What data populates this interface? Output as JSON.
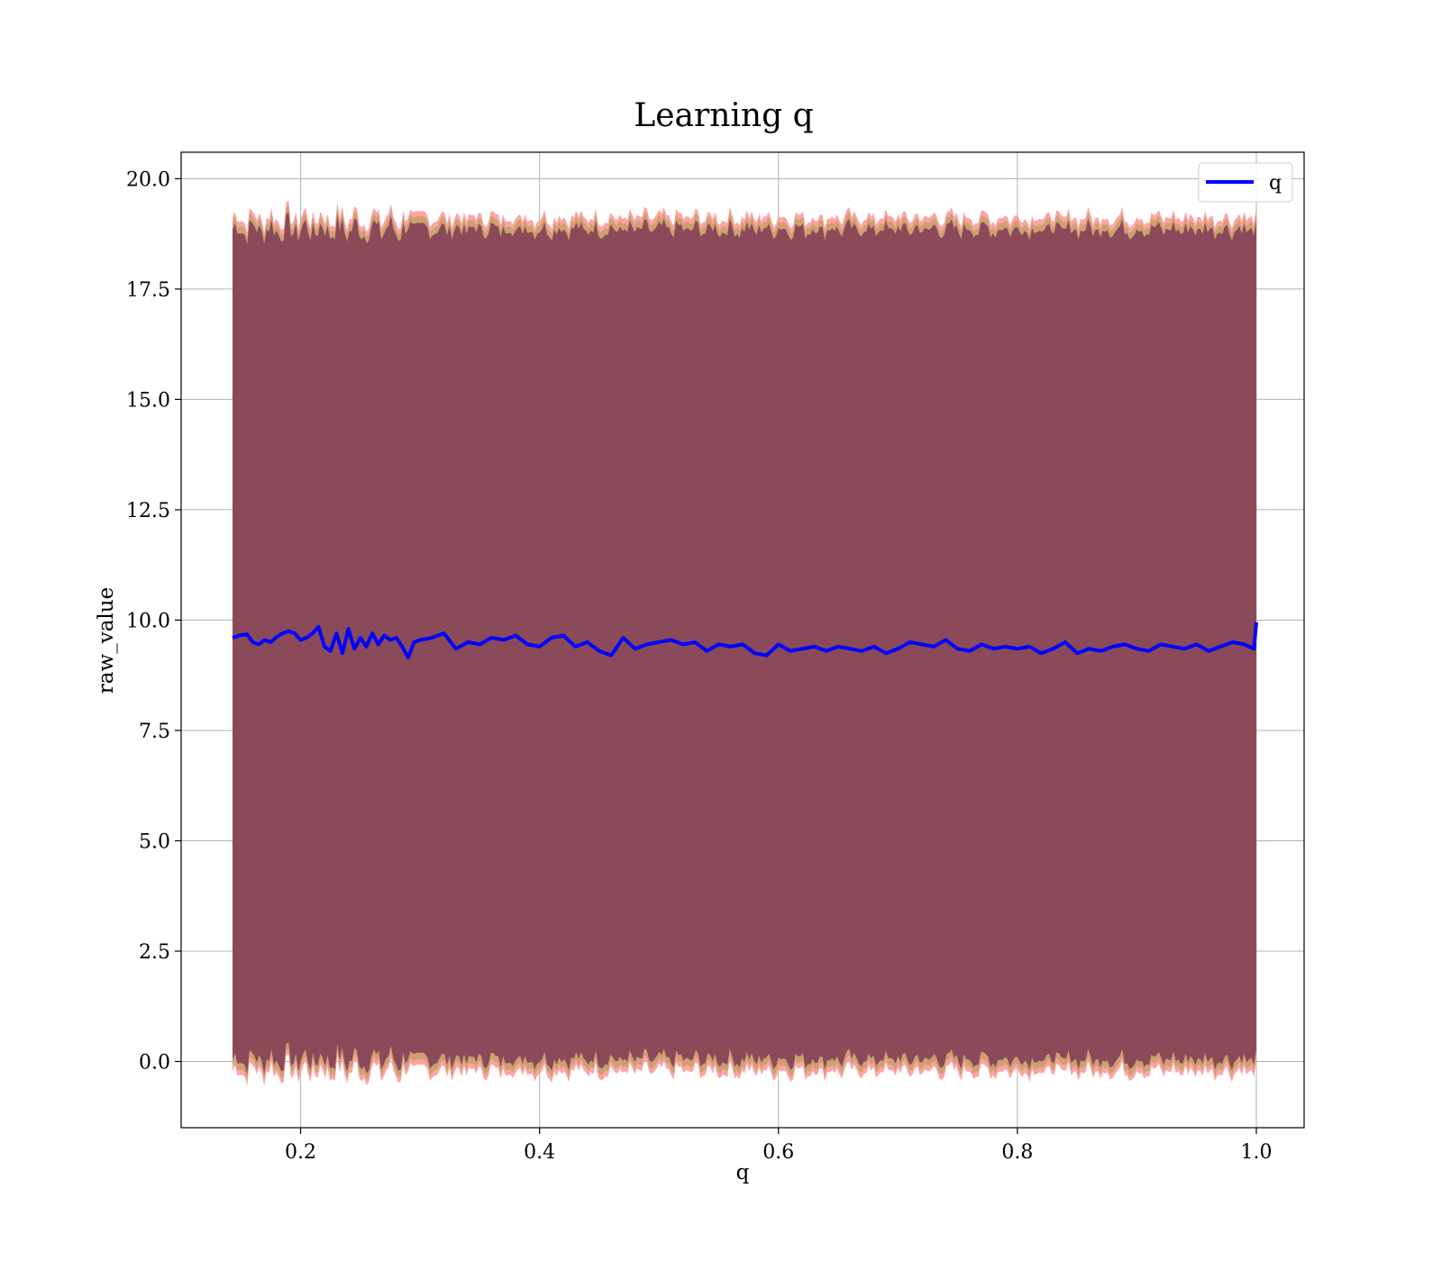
{
  "chart_data": {
    "type": "line",
    "title": "Learning q",
    "xlabel": "q",
    "ylabel": "raw_value",
    "xlim": [
      0.1,
      1.04
    ],
    "ylim": [
      -1.5,
      20.6
    ],
    "x_ticks": [
      0.2,
      0.4,
      0.6,
      0.8,
      1.0
    ],
    "x_tick_labels": [
      "0.2",
      "0.4",
      "0.6",
      "0.8",
      "1.0"
    ],
    "y_ticks": [
      0.0,
      2.5,
      5.0,
      7.5,
      10.0,
      12.5,
      15.0,
      17.5,
      20.0
    ],
    "y_tick_labels": [
      "0.0",
      "2.5",
      "5.0",
      "7.5",
      "10.0",
      "12.5",
      "15.0",
      "17.5",
      "20.0"
    ],
    "grid": true,
    "legend": {
      "position": "top-right",
      "entries": [
        "q"
      ]
    },
    "series": [
      {
        "name": "q",
        "color": "#0000ff",
        "x": [
          0.143,
          0.15,
          0.155,
          0.16,
          0.165,
          0.17,
          0.175,
          0.18,
          0.185,
          0.19,
          0.195,
          0.2,
          0.205,
          0.21,
          0.215,
          0.22,
          0.225,
          0.23,
          0.235,
          0.24,
          0.245,
          0.25,
          0.255,
          0.26,
          0.265,
          0.27,
          0.275,
          0.28,
          0.285,
          0.29,
          0.295,
          0.3,
          0.31,
          0.32,
          0.33,
          0.34,
          0.35,
          0.36,
          0.37,
          0.38,
          0.39,
          0.4,
          0.41,
          0.42,
          0.43,
          0.44,
          0.45,
          0.46,
          0.47,
          0.48,
          0.49,
          0.5,
          0.51,
          0.52,
          0.53,
          0.54,
          0.55,
          0.56,
          0.57,
          0.58,
          0.59,
          0.6,
          0.61,
          0.62,
          0.63,
          0.64,
          0.65,
          0.66,
          0.67,
          0.68,
          0.69,
          0.7,
          0.71,
          0.72,
          0.73,
          0.74,
          0.75,
          0.76,
          0.77,
          0.78,
          0.79,
          0.8,
          0.81,
          0.82,
          0.83,
          0.84,
          0.85,
          0.86,
          0.87,
          0.88,
          0.89,
          0.9,
          0.91,
          0.92,
          0.93,
          0.94,
          0.95,
          0.96,
          0.97,
          0.98,
          0.99,
          0.998,
          1.0
        ],
        "y": [
          9.6,
          9.66,
          9.68,
          9.5,
          9.45,
          9.55,
          9.5,
          9.62,
          9.7,
          9.75,
          9.7,
          9.55,
          9.6,
          9.7,
          9.85,
          9.4,
          9.3,
          9.7,
          9.25,
          9.8,
          9.35,
          9.6,
          9.4,
          9.7,
          9.45,
          9.65,
          9.55,
          9.6,
          9.4,
          9.15,
          9.5,
          9.55,
          9.6,
          9.7,
          9.35,
          9.5,
          9.45,
          9.6,
          9.55,
          9.65,
          9.45,
          9.4,
          9.6,
          9.65,
          9.4,
          9.5,
          9.3,
          9.2,
          9.6,
          9.35,
          9.45,
          9.5,
          9.55,
          9.45,
          9.5,
          9.3,
          9.45,
          9.4,
          9.45,
          9.25,
          9.2,
          9.45,
          9.3,
          9.35,
          9.4,
          9.3,
          9.4,
          9.35,
          9.3,
          9.4,
          9.25,
          9.35,
          9.5,
          9.45,
          9.4,
          9.55,
          9.35,
          9.3,
          9.45,
          9.35,
          9.4,
          9.35,
          9.4,
          9.25,
          9.35,
          9.5,
          9.25,
          9.35,
          9.3,
          9.4,
          9.45,
          9.35,
          9.3,
          9.45,
          9.4,
          9.35,
          9.45,
          9.3,
          9.4,
          9.5,
          9.45,
          9.35,
          9.95
        ]
      }
    ],
    "band": {
      "colors": [
        "#8b4a5a",
        "#c8a06a",
        "#ff9999"
      ],
      "upper_mean_approx": 18.9,
      "lower_mean_approx": 0.0
    }
  }
}
